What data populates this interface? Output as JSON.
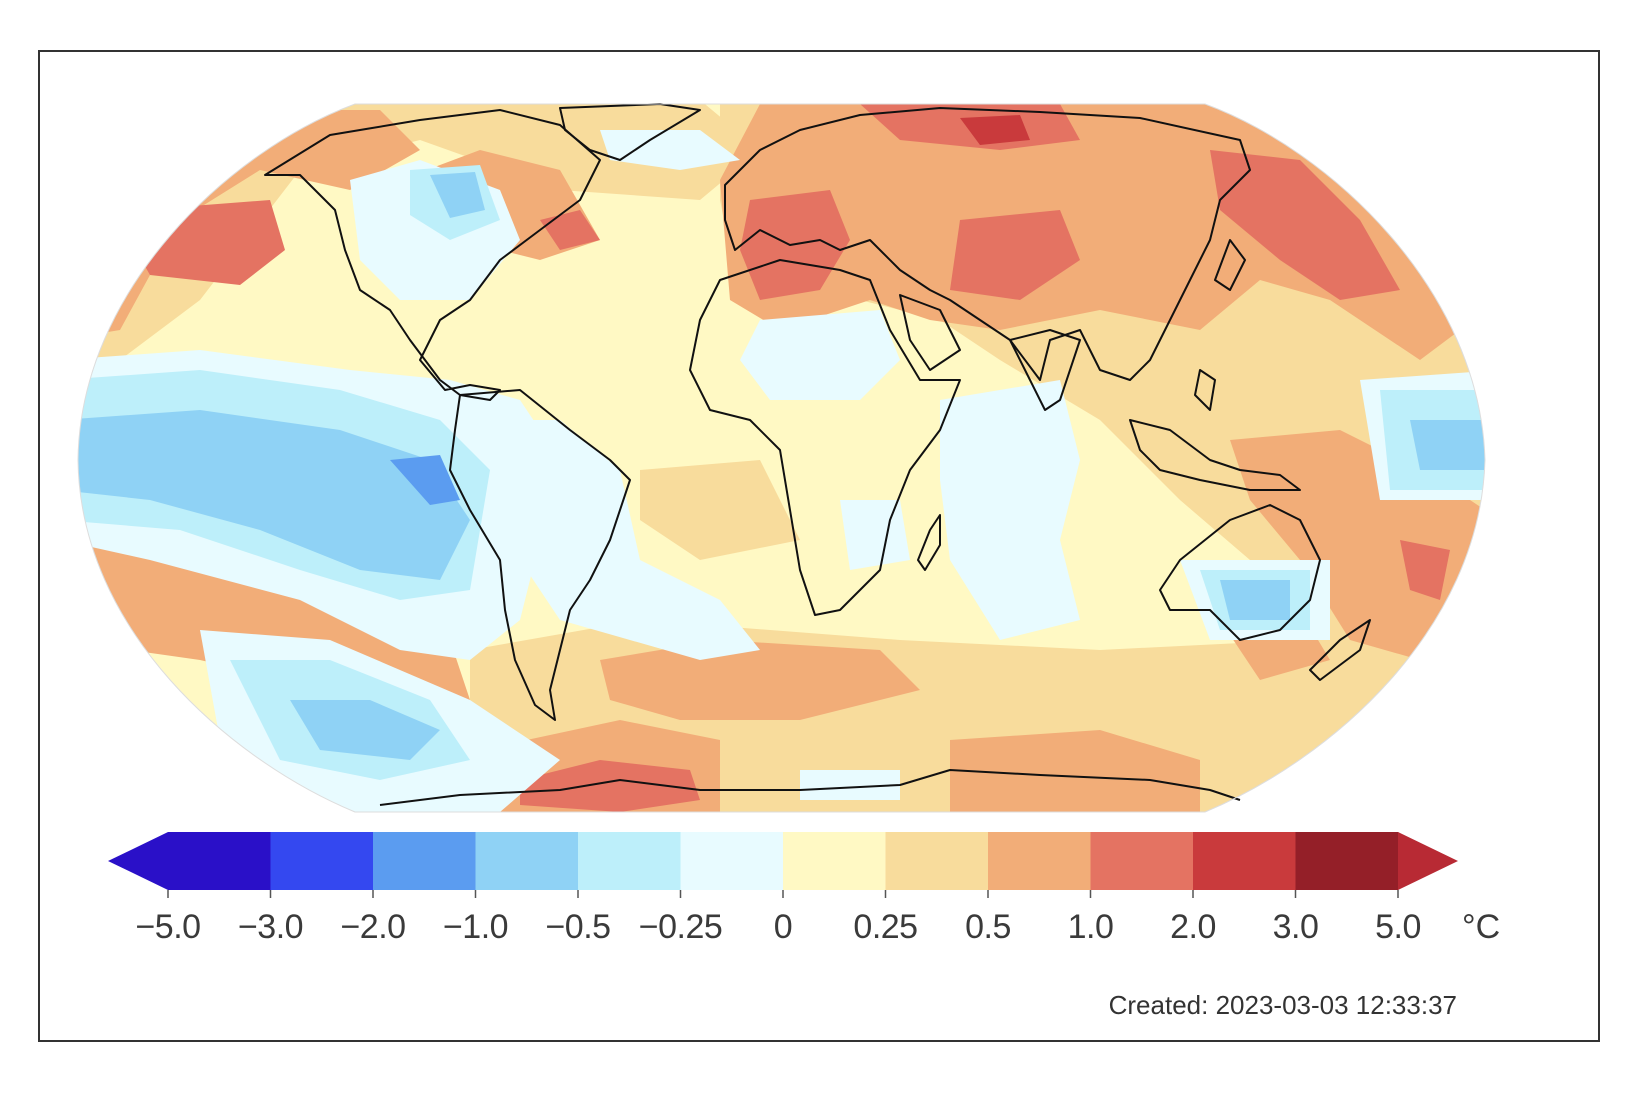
{
  "map": {
    "title": "",
    "projection": "Robinson-style world map",
    "variable": "surface temperature anomaly"
  },
  "legend": {
    "unit": "°C",
    "ticks": [
      "−5.0",
      "−3.0",
      "−2.0",
      "−1.0",
      "−0.5",
      "−0.25",
      "0",
      "0.25",
      "0.5",
      "1.0",
      "2.0",
      "3.0",
      "5.0"
    ],
    "bins": [
      {
        "range": "-5.0 to -3.0",
        "color": "#2a10c8"
      },
      {
        "range": "-3.0 to -2.0",
        "color": "#3448f0"
      },
      {
        "range": "-2.0 to -1.0",
        "color": "#5b9cf0"
      },
      {
        "range": "-1.0 to -0.5",
        "color": "#8fd2f5"
      },
      {
        "range": "-0.5 to -0.25",
        "color": "#bdeffa"
      },
      {
        "range": "-0.25 to 0",
        "color": "#e8fbff"
      },
      {
        "range": "0 to 0.25",
        "color": "#fff9c4"
      },
      {
        "range": "0.25 to 0.5",
        "color": "#f8dc9c"
      },
      {
        "range": "0.5 to 1.0",
        "color": "#f2ad78"
      },
      {
        "range": "1.0 to 2.0",
        "color": "#e47362"
      },
      {
        "range": "2.0 to 3.0",
        "color": "#c93a3c"
      },
      {
        "range": "3.0 to 5.0",
        "color": "#941f28"
      }
    ],
    "over_color": "#b82a34",
    "under_color": "#2a10c8"
  },
  "footer": {
    "created": "Created: 2023-03-03 12:33:37"
  }
}
